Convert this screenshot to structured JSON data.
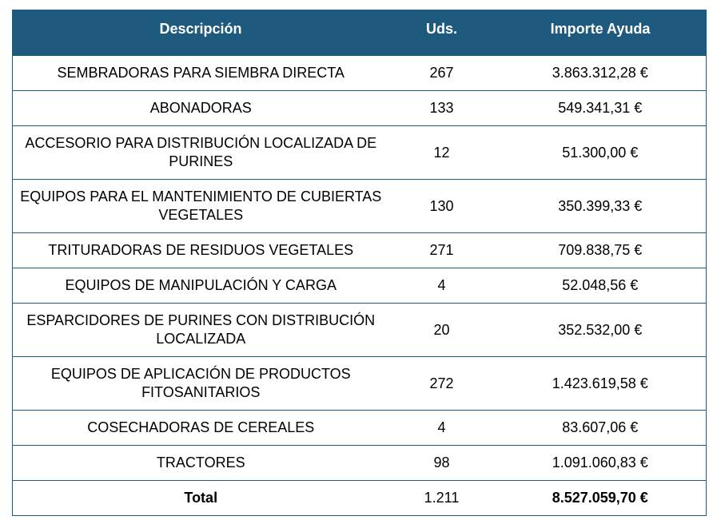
{
  "headers": {
    "description": "Descripción",
    "units": "Uds.",
    "amount": "Importe Ayuda"
  },
  "rows": [
    {
      "description": "SEMBRADORAS PARA SIEMBRA DIRECTA",
      "units": "267",
      "amount": "3.863.312,28 €"
    },
    {
      "description": "ABONADORAS",
      "units": "133",
      "amount": "549.341,31 €"
    },
    {
      "description": "ACCESORIO PARA DISTRIBUCIÓN LOCALIZADA DE PURINES",
      "units": "12",
      "amount": "51.300,00 €"
    },
    {
      "description": "EQUIPOS PARA EL MANTENIMIENTO DE CUBIERTAS VEGETALES",
      "units": "130",
      "amount": "350.399,33 €"
    },
    {
      "description": "TRITURADORAS DE RESIDUOS VEGETALES",
      "units": "271",
      "amount": "709.838,75 €"
    },
    {
      "description": "EQUIPOS DE MANIPULACIÓN Y CARGA",
      "units": "4",
      "amount": "52.048,56 €"
    },
    {
      "description": "ESPARCIDORES DE PURINES CON DISTRIBUCIÓN LOCALIZADA",
      "units": "20",
      "amount": "352.532,00 €"
    },
    {
      "description": "EQUIPOS DE APLICACIÓN DE PRODUCTOS FITOSANITARIOS",
      "units": "272",
      "amount": "1.423.619,58 €"
    },
    {
      "description": "COSECHADORAS DE CEREALES",
      "units": "4",
      "amount": "83.607,06 €"
    },
    {
      "description": "TRACTORES",
      "units": "98",
      "amount": "1.091.060,83 €"
    }
  ],
  "total": {
    "label": "Total",
    "units": "1.211",
    "amount": "8.527.059,70 €"
  },
  "colors": {
    "header_background": "#1e5a7e",
    "header_text": "#ffffff",
    "border": "#1e5a7e"
  }
}
